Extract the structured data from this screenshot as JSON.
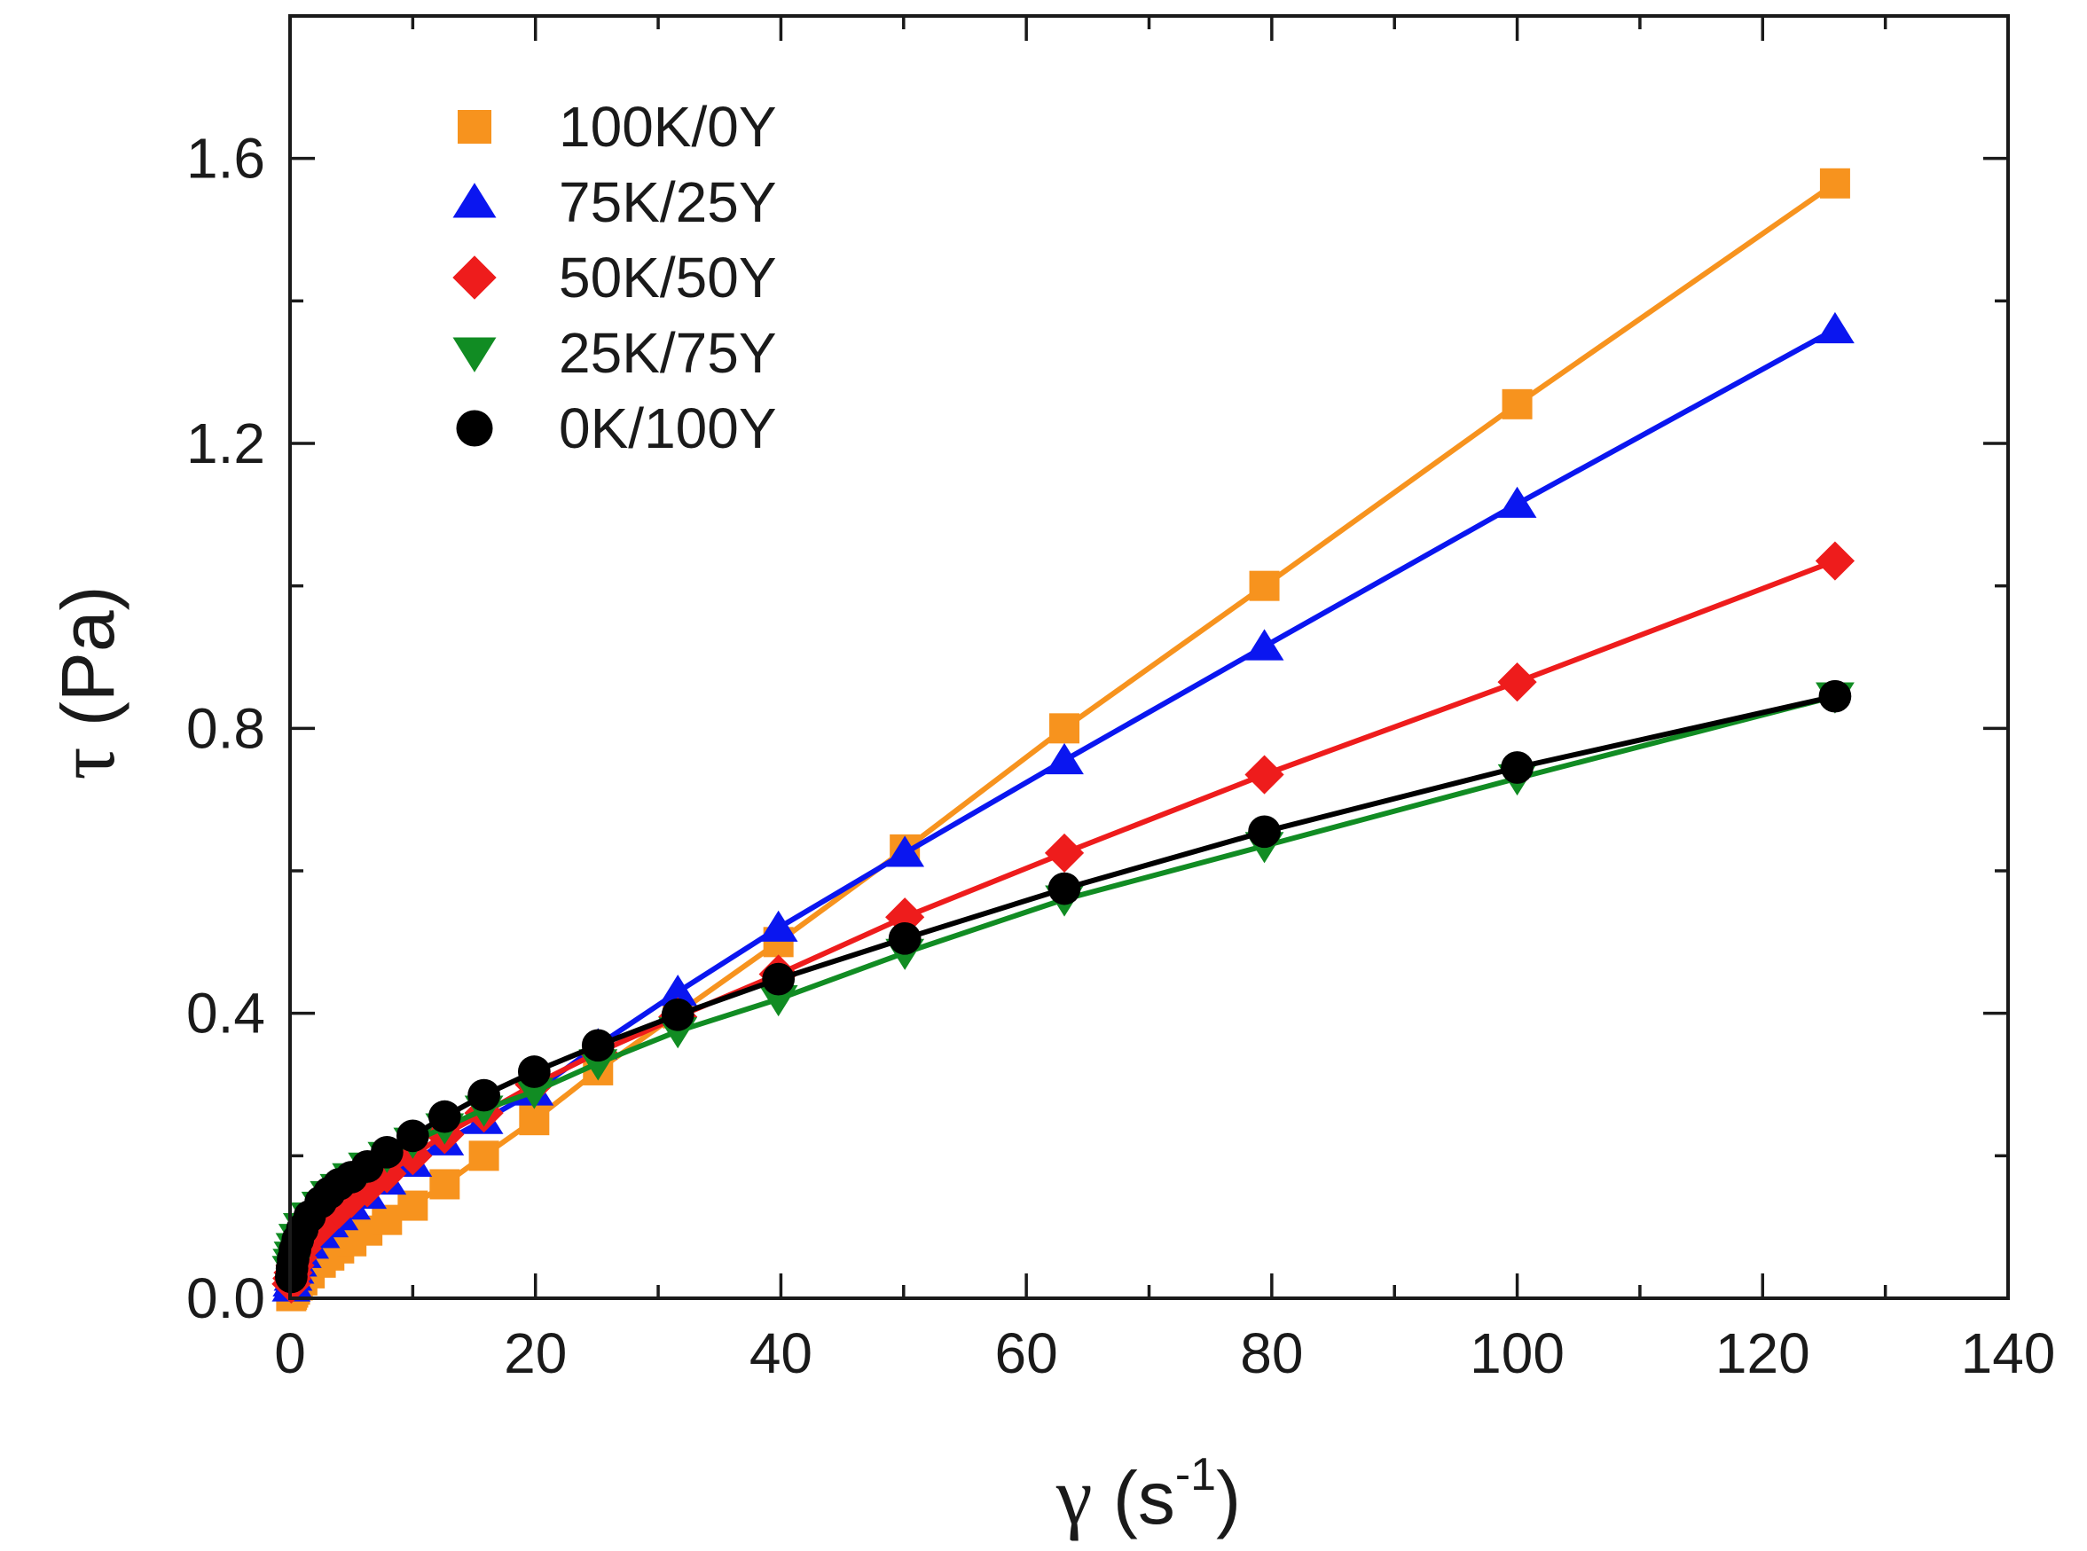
{
  "chart_data": {
    "type": "line",
    "x_label": {
      "symbol": "γ",
      "unit_open": " (s",
      "unit_sup": "-1",
      "unit_close": ")"
    },
    "y_label": {
      "symbol": "τ",
      "unit": " (Pa)"
    },
    "xlim": [
      0,
      140
    ],
    "ylim": [
      0,
      1.8
    ],
    "x_ticks": [
      "0",
      "20",
      "40",
      "60",
      "80",
      "100",
      "120",
      "140"
    ],
    "y_ticks": [
      "0.0",
      "0.4",
      "0.8",
      "1.2",
      "1.6"
    ],
    "x_tick_values": [
      0,
      20,
      40,
      60,
      80,
      100,
      120,
      140
    ],
    "y_tick_values": [
      0,
      0.4,
      0.8,
      1.2,
      1.6
    ],
    "x_minor_step": 10,
    "y_minor_step": 0.2,
    "grid": false,
    "legend_position": "top-left",
    "x": [
      0.1,
      0.16,
      0.25,
      0.4,
      0.63,
      1.0,
      1.6,
      2.5,
      3.2,
      4.0,
      5.0,
      6.3,
      7.9,
      10,
      12.6,
      15.8,
      19.9,
      25.1,
      31.6,
      39.8,
      50.1,
      63.1,
      79.4,
      100,
      125.9
    ],
    "series": [
      {
        "name": "100K/0Y",
        "color": "#f7931e",
        "marker": "square",
        "values": [
          0.003,
          0.005,
          0.008,
          0.012,
          0.018,
          0.025,
          0.035,
          0.05,
          0.06,
          0.07,
          0.08,
          0.095,
          0.11,
          0.13,
          0.16,
          0.2,
          0.25,
          0.32,
          0.4,
          0.5,
          0.63,
          0.8,
          1.0,
          1.255,
          1.565
        ]
      },
      {
        "name": "75K/25Y",
        "color": "#0a16f0",
        "marker": "triangle-up",
        "values": [
          0.015,
          0.022,
          0.03,
          0.04,
          0.05,
          0.062,
          0.075,
          0.09,
          0.105,
          0.115,
          0.13,
          0.145,
          0.165,
          0.19,
          0.22,
          0.25,
          0.29,
          0.355,
          0.43,
          0.52,
          0.625,
          0.755,
          0.915,
          1.115,
          1.36
        ]
      },
      {
        "name": "50K/50Y",
        "color": "#ee1c1c",
        "marker": "diamond",
        "values": [
          0.02,
          0.028,
          0.036,
          0.046,
          0.057,
          0.07,
          0.085,
          0.1,
          0.115,
          0.125,
          0.14,
          0.155,
          0.175,
          0.2,
          0.23,
          0.26,
          0.3,
          0.345,
          0.395,
          0.455,
          0.535,
          0.625,
          0.735,
          0.865,
          1.035
        ]
      },
      {
        "name": "25K/75Y",
        "color": "#118c23",
        "marker": "triangle-down",
        "values": [
          0.04,
          0.05,
          0.06,
          0.072,
          0.085,
          0.1,
          0.115,
          0.13,
          0.145,
          0.155,
          0.17,
          0.185,
          0.2,
          0.22,
          0.24,
          0.265,
          0.29,
          0.33,
          0.375,
          0.42,
          0.485,
          0.56,
          0.635,
          0.73,
          0.845
        ]
      },
      {
        "name": "0K/100Y",
        "color": "#000000",
        "marker": "circle",
        "values": [
          0.03,
          0.042,
          0.055,
          0.068,
          0.082,
          0.097,
          0.115,
          0.135,
          0.148,
          0.16,
          0.17,
          0.185,
          0.205,
          0.228,
          0.255,
          0.285,
          0.318,
          0.355,
          0.398,
          0.448,
          0.505,
          0.575,
          0.655,
          0.745,
          0.845
        ]
      }
    ]
  }
}
